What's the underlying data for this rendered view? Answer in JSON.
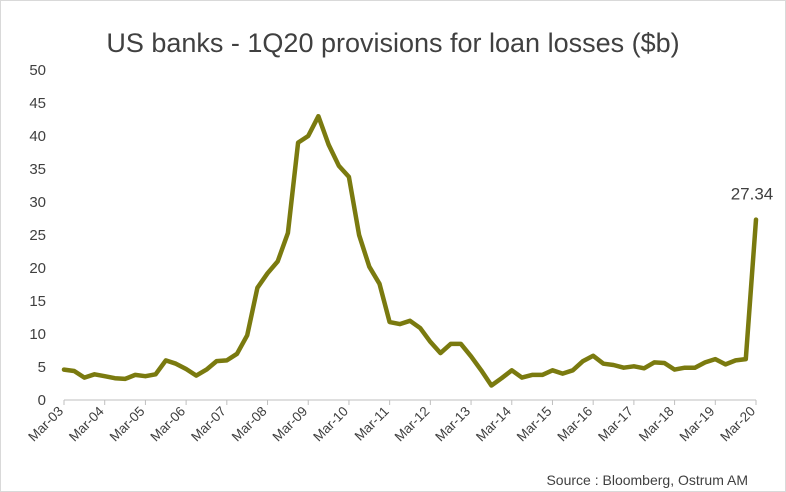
{
  "chart_data": {
    "type": "line",
    "title": "US banks - 1Q20 provisions for loan losses ($b)",
    "xlabel": "",
    "ylabel": "",
    "ylim": [
      0,
      50
    ],
    "yticks": [
      0,
      5,
      10,
      15,
      20,
      25,
      30,
      35,
      40,
      45,
      50
    ],
    "grid": false,
    "x_tick_labels": [
      "Mar-03",
      "Mar-04",
      "Mar-05",
      "Mar-06",
      "Mar-07",
      "Mar-08",
      "Mar-09",
      "Mar-10",
      "Mar-11",
      "Mar-12",
      "Mar-13",
      "Mar-14",
      "Mar-15",
      "Mar-16",
      "Mar-17",
      "Mar-18",
      "Mar-19",
      "Mar-20"
    ],
    "series": [
      {
        "color": "#7a7a0f",
        "x": [
          "Mar-03",
          "Jun-03",
          "Sep-03",
          "Dec-03",
          "Mar-04",
          "Jun-04",
          "Sep-04",
          "Dec-04",
          "Mar-05",
          "Jun-05",
          "Sep-05",
          "Dec-05",
          "Mar-06",
          "Jun-06",
          "Sep-06",
          "Dec-06",
          "Mar-07",
          "Jun-07",
          "Sep-07",
          "Dec-07",
          "Mar-08",
          "Jun-08",
          "Sep-08",
          "Dec-08",
          "Mar-09",
          "Jun-09",
          "Sep-09",
          "Dec-09",
          "Mar-10",
          "Jun-10",
          "Sep-10",
          "Dec-10",
          "Mar-11",
          "Jun-11",
          "Sep-11",
          "Dec-11",
          "Mar-12",
          "Jun-12",
          "Sep-12",
          "Dec-12",
          "Mar-13",
          "Jun-13",
          "Sep-13",
          "Dec-13",
          "Mar-14",
          "Jun-14",
          "Sep-14",
          "Dec-14",
          "Mar-15",
          "Jun-15",
          "Sep-15",
          "Dec-15",
          "Mar-16",
          "Jun-16",
          "Sep-16",
          "Dec-16",
          "Mar-17",
          "Jun-17",
          "Sep-17",
          "Dec-17",
          "Mar-18",
          "Jun-18",
          "Sep-18",
          "Dec-18",
          "Mar-19",
          "Jun-19",
          "Sep-19",
          "Dec-19",
          "Mar-20"
        ],
        "values": [
          4.6,
          4.4,
          3.4,
          3.9,
          3.6,
          3.3,
          3.2,
          3.8,
          3.6,
          3.9,
          6.0,
          5.5,
          4.7,
          3.7,
          4.6,
          5.9,
          6.0,
          7.0,
          9.8,
          17.0,
          19.2,
          21.0,
          25.3,
          39.0,
          40.0,
          43.0,
          38.7,
          35.5,
          33.8,
          25.0,
          20.2,
          17.6,
          11.8,
          11.5,
          12.0,
          10.9,
          8.8,
          7.1,
          8.5,
          8.5,
          6.6,
          4.5,
          2.2,
          3.3,
          4.5,
          3.4,
          3.8,
          3.8,
          4.5,
          4.0,
          4.5,
          5.9,
          6.7,
          5.5,
          5.3,
          4.9,
          5.1,
          4.8,
          5.7,
          5.6,
          4.6,
          4.9,
          4.9,
          5.7,
          6.2,
          5.4,
          6.0,
          6.2,
          27.34
        ]
      }
    ],
    "annotations": [
      {
        "x": "Mar-20",
        "text": "27.34"
      }
    ]
  },
  "footer": {
    "source": "Source : Bloomberg, Ostrum AM"
  }
}
